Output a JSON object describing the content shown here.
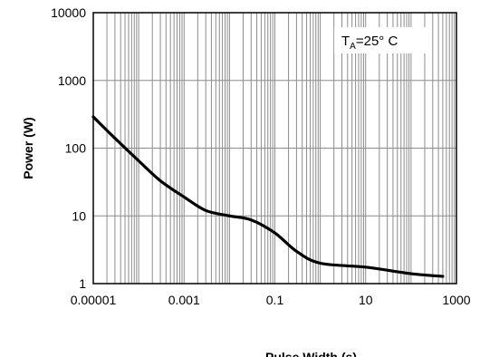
{
  "chart_data": {
    "type": "line",
    "title": "",
    "xlabel": "Pulse Width (s)",
    "ylabel": "Power (W)",
    "x_scale": "log",
    "y_scale": "log",
    "xlim": [
      1e-05,
      1000
    ],
    "ylim": [
      1,
      10000
    ],
    "x_tick_labels": [
      "0.00001",
      "0.001",
      "0.1",
      "10",
      "1000"
    ],
    "y_tick_labels": [
      "1",
      "10",
      "100",
      "1000",
      "10000"
    ],
    "grid": true,
    "annotation": {
      "prefix": "T",
      "subscript": "A",
      "suffix": "=25° C"
    },
    "series": [
      {
        "color": "#000000",
        "x": [
          1e-05,
          3e-05,
          0.0001,
          0.0003,
          0.001,
          0.003,
          0.01,
          0.03,
          0.1,
          0.3,
          1,
          10,
          100,
          500
        ],
        "y": [
          290,
          140,
          65,
          33,
          19,
          12,
          10,
          8.7,
          5.6,
          3.0,
          2.0,
          1.75,
          1.4,
          1.28
        ]
      }
    ]
  }
}
